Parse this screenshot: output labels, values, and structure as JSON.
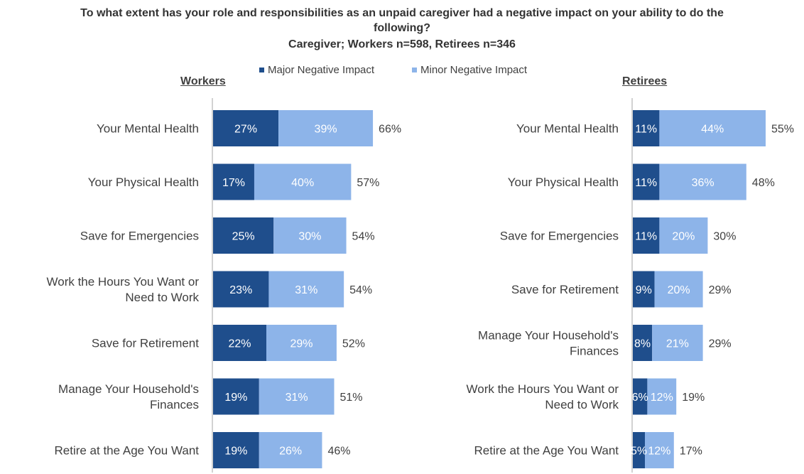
{
  "chart_data": {
    "type": "bar",
    "orientation": "horizontal",
    "stacked": true,
    "title": "To what extent has your role and responsibilities as an unpaid caregiver had a negative impact on your ability to do the following?",
    "subtitle": "Caregiver; Workers n=598, Retirees n=346",
    "legend": {
      "placement": "top",
      "items": [
        "Major Negative Impact",
        "Minor Negative Impact"
      ]
    },
    "colors": {
      "major": "#1F4E8C",
      "minor": "#8DB4E9",
      "axis": "#A6A6A6"
    },
    "xlim": [
      0,
      100
    ],
    "grid": false,
    "panels": [
      {
        "name": "Workers",
        "categories": [
          "Your Mental Health",
          "Your Physical Health",
          "Save for Emergencies",
          "Work the Hours You Want or Need to Work",
          "Save for Retirement",
          "Manage Your Household's Finances",
          "Retire at the Age You Want"
        ],
        "category_lines": [
          [
            "Your Mental Health"
          ],
          [
            "Your Physical Health"
          ],
          [
            "Save for Emergencies"
          ],
          [
            "Work the Hours You Want or",
            "Need to Work"
          ],
          [
            "Save for Retirement"
          ],
          [
            "Manage Your Household's",
            "Finances"
          ],
          [
            "Retire at the Age You Want"
          ]
        ],
        "series": [
          {
            "name": "Major Negative Impact",
            "values": [
              27,
              17,
              25,
              23,
              22,
              19,
              19
            ],
            "labels": [
              "27%",
              "17%",
              "25%",
              "23%",
              "22%",
              "19%",
              "19%"
            ]
          },
          {
            "name": "Minor Negative Impact",
            "values": [
              39,
              40,
              30,
              31,
              29,
              31,
              26
            ],
            "labels": [
              "39%",
              "40%",
              "30%",
              "31%",
              "29%",
              "31%",
              "26%"
            ]
          }
        ],
        "totals": [
          66,
          57,
          54,
          54,
          52,
          51,
          46
        ],
        "total_labels": [
          "66%",
          "57%",
          "54%",
          "54%",
          "52%",
          "51%",
          "46%"
        ]
      },
      {
        "name": "Retirees",
        "categories": [
          "Your Mental Health",
          "Your Physical Health",
          "Save for Emergencies",
          "Save for Retirement",
          "Manage Your Household's Finances",
          "Work the Hours You Want or Need to Work",
          "Retire at the Age You Want"
        ],
        "category_lines": [
          [
            "Your Mental Health"
          ],
          [
            "Your Physical Health"
          ],
          [
            "Save for Emergencies"
          ],
          [
            "Save for Retirement"
          ],
          [
            "Manage Your Household's",
            "Finances"
          ],
          [
            "Work the Hours You Want or",
            "Need to Work"
          ],
          [
            "Retire at the Age You Want"
          ]
        ],
        "series": [
          {
            "name": "Major Negative Impact",
            "values": [
              11,
              11,
              11,
              9,
              8,
              6,
              5
            ],
            "labels": [
              "11%",
              "11%",
              "11%",
              "9%",
              "8%",
              "6%",
              "5%"
            ]
          },
          {
            "name": "Minor Negative Impact",
            "values": [
              44,
              36,
              20,
              20,
              21,
              12,
              12
            ],
            "labels": [
              "44%",
              "36%",
              "20%",
              "20%",
              "21%",
              "12%",
              "12%"
            ]
          }
        ],
        "totals": [
          55,
          48,
          30,
          29,
          29,
          19,
          17
        ],
        "total_labels": [
          "55%",
          "48%",
          "30%",
          "29%",
          "29%",
          "19%",
          "17%"
        ]
      }
    ]
  }
}
